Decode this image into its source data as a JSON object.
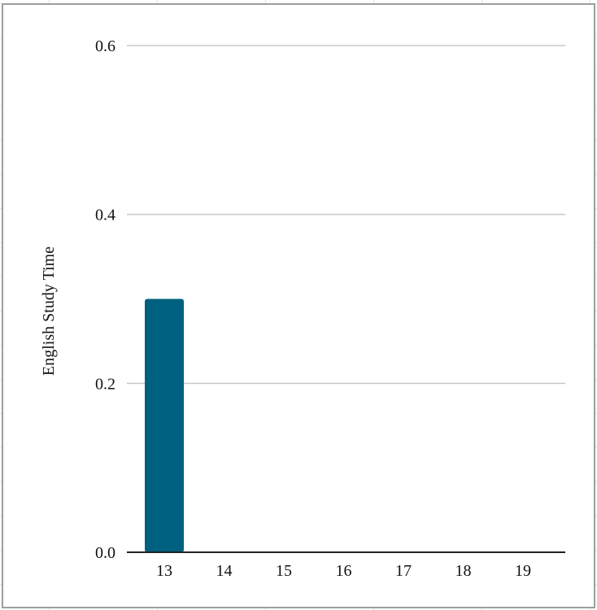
{
  "chart_data": {
    "type": "bar",
    "categories": [
      "13",
      "14",
      "15",
      "16",
      "17",
      "18",
      "19"
    ],
    "values": [
      0.3,
      0,
      0,
      0,
      0,
      0,
      0
    ],
    "title": "",
    "xlabel": "",
    "ylabel": "English Study Time",
    "ylim": [
      0,
      0.6
    ],
    "yticks": [
      "0.0",
      "0.2",
      "0.4",
      "0.6"
    ],
    "grid": true,
    "legend": "none",
    "bar_color": "#00607f",
    "grid_color": "#c8c8c8",
    "axis_color": "#222222"
  }
}
